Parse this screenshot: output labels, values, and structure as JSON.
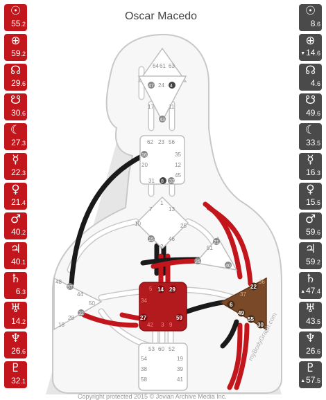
{
  "name": "Oscar Macedo",
  "copyright": "Copyright protected 2015 © Jovian Archive Media Inc.",
  "watermark": "myBodyGraph.com",
  "colors": {
    "design": "#c3161c",
    "personality": "#4a4a4a",
    "defined_red": "#c3161c",
    "defined_brown": "#7a4a28",
    "channel_black": "#1a1a1a"
  },
  "design_column": [
    {
      "planet": "sun-icon",
      "symbol": "☉",
      "gate": "55",
      "line": "2",
      "arrow": ""
    },
    {
      "planet": "earth-icon",
      "symbol": "⊕",
      "gate": "59",
      "line": "2",
      "arrow": ""
    },
    {
      "planet": "north-node-icon",
      "symbol": "☊",
      "gate": "29",
      "line": "6",
      "arrow": ""
    },
    {
      "planet": "south-node-icon",
      "symbol": "☋",
      "gate": "30",
      "line": "6",
      "arrow": ""
    },
    {
      "planet": "moon-icon",
      "symbol": "☾",
      "gate": "27",
      "line": "3",
      "arrow": ""
    },
    {
      "planet": "mercury-icon",
      "symbol": "☿",
      "gate": "22",
      "line": "3",
      "arrow": ""
    },
    {
      "planet": "venus-icon",
      "symbol": "♀",
      "gate": "21",
      "line": "4",
      "arrow": ""
    },
    {
      "planet": "mars-icon",
      "symbol": "♂",
      "gate": "40",
      "line": "2",
      "arrow": ""
    },
    {
      "planet": "jupiter-icon",
      "symbol": "♃",
      "gate": "40",
      "line": "1",
      "arrow": ""
    },
    {
      "planet": "saturn-icon",
      "symbol": "♄",
      "gate": "6",
      "line": "3",
      "arrow": ""
    },
    {
      "planet": "uranus-icon",
      "symbol": "♅",
      "gate": "14",
      "line": "2",
      "arrow": ""
    },
    {
      "planet": "neptune-icon",
      "symbol": "♆",
      "gate": "26",
      "line": "6",
      "arrow": ""
    },
    {
      "planet": "pluto-icon",
      "symbol": "♇",
      "gate": "32",
      "line": "1",
      "arrow": ""
    }
  ],
  "personality_column": [
    {
      "planet": "sun-icon",
      "symbol": "☉",
      "gate": "8",
      "line": "6",
      "arrow": ""
    },
    {
      "planet": "earth-icon",
      "symbol": "⊕",
      "gate": "14",
      "line": "6",
      "arrow": "▼"
    },
    {
      "planet": "north-node-icon",
      "symbol": "☊",
      "gate": "4",
      "line": "6",
      "arrow": ""
    },
    {
      "planet": "south-node-icon",
      "symbol": "☋",
      "gate": "49",
      "line": "6",
      "arrow": ""
    },
    {
      "planet": "moon-icon",
      "symbol": "☾",
      "gate": "33",
      "line": "5",
      "arrow": ""
    },
    {
      "planet": "mercury-icon",
      "symbol": "☿",
      "gate": "16",
      "line": "3",
      "arrow": ""
    },
    {
      "planet": "venus-icon",
      "symbol": "♀",
      "gate": "15",
      "line": "5",
      "arrow": ""
    },
    {
      "planet": "mars-icon",
      "symbol": "♂",
      "gate": "59",
      "line": "6",
      "arrow": ""
    },
    {
      "planet": "jupiter-icon",
      "symbol": "♃",
      "gate": "59",
      "line": "2",
      "arrow": ""
    },
    {
      "planet": "saturn-icon",
      "symbol": "♄",
      "gate": "47",
      "line": "4",
      "arrow": "▲"
    },
    {
      "planet": "uranus-icon",
      "symbol": "♅",
      "gate": "43",
      "line": "5",
      "arrow": ""
    },
    {
      "planet": "neptune-icon",
      "symbol": "♆",
      "gate": "26",
      "line": "6",
      "arrow": ""
    },
    {
      "planet": "pluto-icon",
      "symbol": "♇",
      "gate": "57",
      "line": "5",
      "arrow": "▲"
    }
  ],
  "gates": {
    "head": [
      "64",
      "61",
      "63"
    ],
    "ajna": [
      "47",
      "24",
      "4",
      "17",
      "11",
      "43"
    ],
    "throat": [
      "62",
      "23",
      "56",
      "16",
      "35",
      "20",
      "12",
      "45",
      "31",
      "8",
      "33"
    ],
    "g": [
      "1",
      "7",
      "13",
      "10",
      "25",
      "15",
      "2",
      "46"
    ],
    "heart": [
      "21",
      "51",
      "26",
      "40"
    ],
    "spleen": [
      "48",
      "57",
      "44",
      "50",
      "32",
      "28",
      "18"
    ],
    "sacral": [
      "5",
      "14",
      "29",
      "34",
      "27",
      "59",
      "42",
      "3",
      "9"
    ],
    "solar_plexus": [
      "36",
      "22",
      "37",
      "6",
      "49",
      "55",
      "30"
    ],
    "root": [
      "53",
      "60",
      "52",
      "54",
      "19",
      "38",
      "39",
      "58",
      "41"
    ]
  }
}
